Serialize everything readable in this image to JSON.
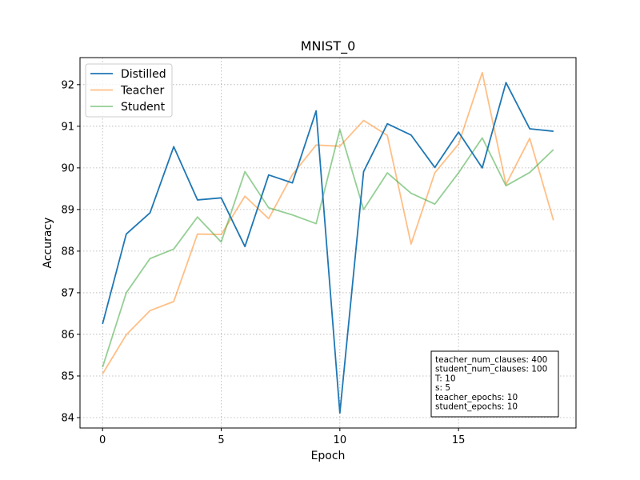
{
  "chart_data": {
    "type": "line",
    "title": "MNIST_0",
    "xlabel": "Epoch",
    "ylabel": "Accuracy",
    "xlim": [
      -0.95,
      19.95
    ],
    "ylim": [
      83.75,
      92.65
    ],
    "xticks": [
      0,
      5,
      10,
      15
    ],
    "yticks": [
      84,
      85,
      86,
      87,
      88,
      89,
      90,
      91,
      92
    ],
    "grid": true,
    "legend_position": "upper-left",
    "x": [
      0,
      1,
      2,
      3,
      4,
      5,
      6,
      7,
      8,
      9,
      10,
      11,
      12,
      13,
      14,
      15,
      16,
      17,
      18,
      19
    ],
    "series": [
      {
        "name": "Distilled",
        "color": "#1f77b4",
        "opacity": 1.0,
        "values": [
          86.25,
          88.41,
          88.92,
          90.51,
          89.23,
          89.28,
          88.11,
          89.83,
          89.64,
          91.37,
          84.11,
          89.91,
          91.06,
          90.79,
          90.01,
          90.86,
          90.0,
          92.05,
          90.94,
          90.88
        ]
      },
      {
        "name": "Teacher",
        "color": "#ff7f0e",
        "opacity": 0.5,
        "values": [
          85.05,
          85.99,
          86.57,
          86.79,
          88.41,
          88.4,
          89.32,
          88.78,
          89.84,
          90.55,
          90.52,
          91.14,
          90.78,
          88.17,
          89.88,
          90.57,
          92.29,
          89.6,
          90.71,
          88.74
        ]
      },
      {
        "name": "Student",
        "color": "#2ca02c",
        "opacity": 0.5,
        "values": [
          85.21,
          87.0,
          87.82,
          88.05,
          88.82,
          88.22,
          89.91,
          89.04,
          88.87,
          88.66,
          90.92,
          89.0,
          89.88,
          89.39,
          89.13,
          89.88,
          90.72,
          89.57,
          89.89,
          90.44
        ]
      }
    ],
    "info_box": [
      "teacher_num_clauses: 400",
      "student_num_clauses: 100",
      "T: 10",
      "s: 5",
      "teacher_epochs: 10",
      "student_epochs: 10"
    ]
  }
}
